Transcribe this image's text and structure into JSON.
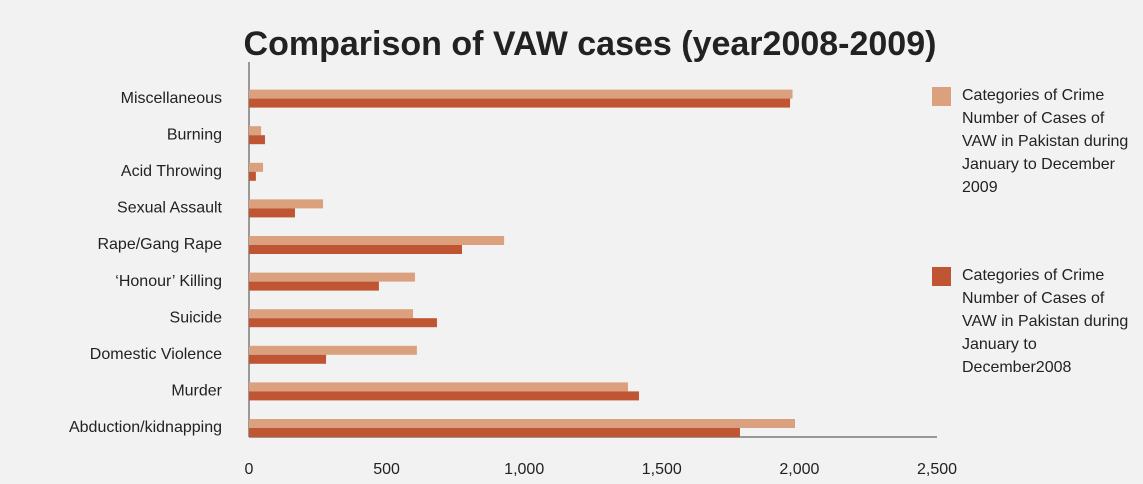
{
  "chart_data": {
    "type": "bar",
    "orientation": "horizontal",
    "title": "Comparison of VAW cases (year2008-2009)",
    "categories": [
      "Abduction/kidnapping",
      "Murder",
      "Domestic Violence",
      "Suicide",
      "‘Honour’ Killing",
      "Rape/Gang Rape",
      "Sexual Assault",
      "Acid Throwing",
      "Burning",
      "Miscellaneous"
    ],
    "series": [
      {
        "name": "Categories of Crime Number of Cases of VAW in Pakistan during January to December 2009",
        "color": "#dba07e",
        "values": [
          1984,
          1377,
          610,
          596,
          603,
          927,
          269,
          51,
          44,
          1975
        ]
      },
      {
        "name": "Categories of Crime Number of Cases of VAW in Pakistan during January to December2008",
        "color": "#bf5532",
        "values": [
          1784,
          1417,
          280,
          683,
          472,
          774,
          167,
          25,
          58,
          1966
        ]
      }
    ],
    "xlim": [
      0,
      2500
    ],
    "xticks": [
      0,
      500,
      {
        "value": 1000,
        "label": "1,000"
      },
      {
        "value": 1500,
        "label": "1,500"
      },
      {
        "value": 2000,
        "label": "2,000"
      },
      {
        "value": 2500,
        "label": "2,500"
      }
    ],
    "grid": false,
    "legend": "right"
  }
}
